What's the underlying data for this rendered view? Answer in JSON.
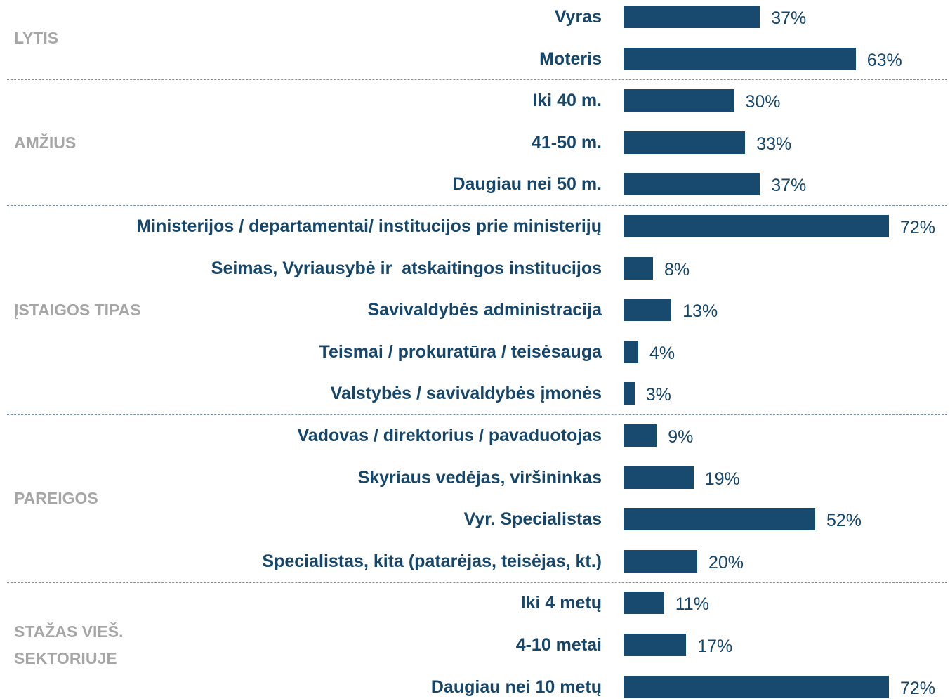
{
  "chart_data": {
    "type": "bar",
    "orientation": "horizontal",
    "color": "#174a6e",
    "groups": [
      {
        "name": "LYTIS",
        "categories": [
          "Vyras",
          "Moteris"
        ],
        "values": [
          37,
          63
        ],
        "value_labels": [
          "37%",
          "63%"
        ]
      },
      {
        "name": "AMŽIUS",
        "categories": [
          "Iki 40 m.",
          "41-50 m.",
          "Daugiau nei 50 m."
        ],
        "values": [
          30,
          33,
          37
        ],
        "value_labels": [
          "30%",
          "33%",
          "37%"
        ]
      },
      {
        "name": "ĮSTAIGOS TIPAS",
        "categories": [
          "Ministerijos / departamentai/ institucijos prie ministerijų",
          "Seimas, Vyriausybė ir  atskaitingos institucijos",
          "Savivaldybės administracija",
          "Teismai / prokuratūra / teisėsauga",
          "Valstybės / savivaldybės įmonės"
        ],
        "values": [
          72,
          8,
          13,
          4,
          3
        ],
        "value_labels": [
          "72%",
          "8%",
          "13%",
          "4%",
          "3%"
        ]
      },
      {
        "name": "PAREIGOS",
        "categories": [
          "Vadovas / direktorius / pavaduotojas",
          "Skyriaus vedėjas, viršininkas",
          "Vyr. Specialistas",
          "Specialistas, kita (patarėjas, teisėjas, kt.)"
        ],
        "values": [
          9,
          19,
          52,
          20
        ],
        "value_labels": [
          "9%",
          "19%",
          "52%",
          "20%"
        ]
      },
      {
        "name": "STAŽAS VIEŠ. SEKTORIUJE",
        "categories": [
          "Iki 4 metų",
          "4-10 metai",
          "Daugiau nei 10 metų"
        ],
        "values": [
          11,
          17,
          72
        ],
        "value_labels": [
          "11%",
          "17%",
          "72%"
        ]
      }
    ]
  }
}
